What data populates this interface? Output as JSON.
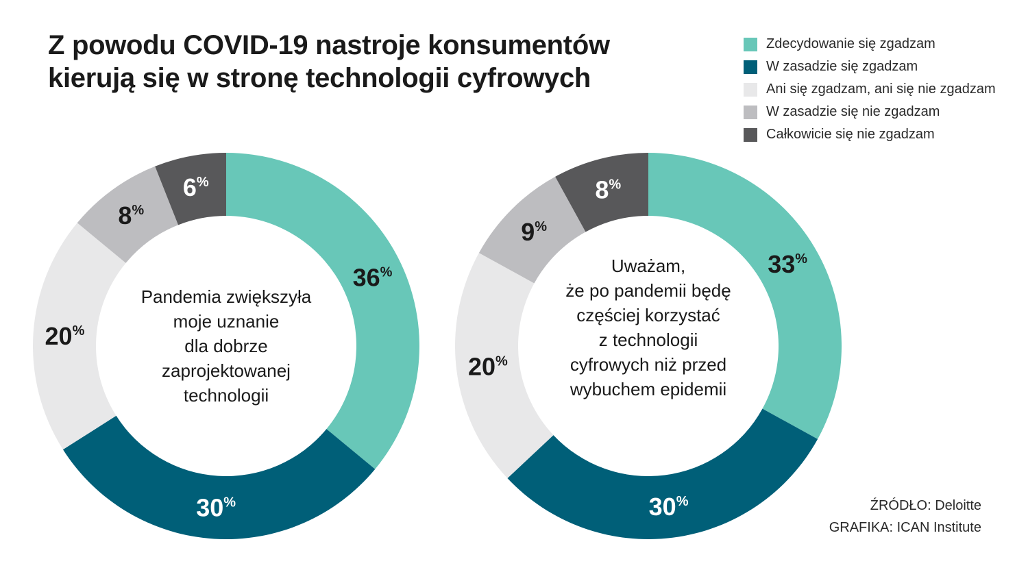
{
  "title_lines": [
    "Z powodu COVID-19 nastroje konsumentów",
    "kierują się w stronę technologii cyfrowych"
  ],
  "legend": [
    {
      "label": "Zdecydowanie się zgadzam",
      "color": "#68c7b8"
    },
    {
      "label": "W zasadzie się zgadzam",
      "color": "#005f78"
    },
    {
      "label": "Ani się zgadzam, ani się nie zgadzam",
      "color": "#e8e8e9"
    },
    {
      "label": "W zasadzie się nie zgadzam",
      "color": "#bdbdc0"
    },
    {
      "label": "Całkowicie się nie zgadzam",
      "color": "#58585a"
    }
  ],
  "chart_data": [
    {
      "type": "pie",
      "center_text": [
        "Pandemia zwiększyła",
        "moje uznanie",
        "dla dobrze",
        "zaprojektowanej",
        "technologii"
      ],
      "categories": [
        "Zdecydowanie się zgadzam",
        "W zasadzie się zgadzam",
        "Ani się zgadzam, ani się nie zgadzam",
        "W zasadzie się nie zgadzam",
        "Całkowicie się nie zgadzam"
      ],
      "values": [
        36,
        30,
        20,
        8,
        6
      ],
      "value_labels": [
        "36",
        "30",
        "20",
        "8",
        "6"
      ],
      "unit": "%"
    },
    {
      "type": "pie",
      "center_text": [
        "Uważam,",
        "że po pandemii będę",
        "częściej korzystać",
        "z technologii",
        "cyfrowych niż przed",
        "wybuchem epidemii"
      ],
      "categories": [
        "Zdecydowanie się zgadzam",
        "W zasadzie się zgadzam",
        "Ani się zgadzam, ani się nie zgadzam",
        "W zasadzie się nie zgadzam",
        "Całkowicie się nie zgadzam"
      ],
      "values": [
        33,
        30,
        20,
        9,
        8
      ],
      "value_labels": [
        "33",
        "30",
        "20",
        "9",
        "8"
      ],
      "unit": "%"
    }
  ],
  "source": {
    "line1": "ŹRÓDŁO: Deloitte",
    "line2": "GRAFIKA: ICAN Institute"
  }
}
